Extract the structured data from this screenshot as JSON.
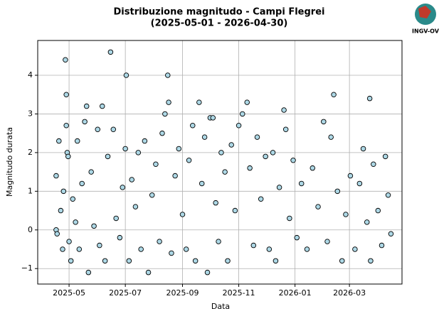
{
  "chart_data": {
    "type": "scatter",
    "title": "Distribuzione magnitudo - Campi Flegrei",
    "subtitle": "(2025-05-01 - 2026-04-30)",
    "x_label": "Data",
    "y_label": "Magnitudo durata",
    "color": "#add8e6",
    "edgecolor": "#000000",
    "grid": true,
    "xlim": [
      "2025-03-28",
      "2026-04-27"
    ],
    "xticks": [
      {
        "value": "2025-05-01",
        "label": "2025-05"
      },
      {
        "value": "2025-07-01",
        "label": "2025-07"
      },
      {
        "value": "2025-09-01",
        "label": "2025-09"
      },
      {
        "value": "2025-11-01",
        "label": "2025-11"
      },
      {
        "value": "2026-01-01",
        "label": "2026-01"
      },
      {
        "value": "2026-03-01",
        "label": "2026-03"
      }
    ],
    "ylim": [
      -1.4,
      4.9
    ],
    "yticks": [
      {
        "value": -1,
        "label": "−1"
      },
      0,
      1,
      2,
      3,
      4
    ],
    "x": [
      "2025-04-17",
      "2025-04-17",
      "2025-04-18",
      "2025-04-20",
      "2025-04-22",
      "2025-04-24",
      "2025-04-25",
      "2025-04-27",
      "2025-04-28",
      "2025-04-28",
      "2025-04-29",
      "2025-04-30",
      "2025-05-01",
      "2025-05-03",
      "2025-05-05",
      "2025-05-08",
      "2025-05-10",
      "2025-05-12",
      "2025-05-15",
      "2025-05-18",
      "2025-05-20",
      "2025-05-22",
      "2025-05-25",
      "2025-05-28",
      "2025-06-01",
      "2025-06-03",
      "2025-06-06",
      "2025-06-09",
      "2025-06-12",
      "2025-06-15",
      "2025-06-18",
      "2025-06-21",
      "2025-06-25",
      "2025-06-28",
      "2025-07-01",
      "2025-07-02",
      "2025-07-05",
      "2025-07-08",
      "2025-07-12",
      "2025-07-15",
      "2025-07-18",
      "2025-07-22",
      "2025-07-26",
      "2025-07-30",
      "2025-08-03",
      "2025-08-07",
      "2025-08-10",
      "2025-08-13",
      "2025-08-16",
      "2025-08-17",
      "2025-08-20",
      "2025-08-24",
      "2025-08-28",
      "2025-09-01",
      "2025-09-05",
      "2025-09-08",
      "2025-09-12",
      "2025-09-15",
      "2025-09-19",
      "2025-09-22",
      "2025-09-25",
      "2025-09-28",
      "2025-10-01",
      "2025-10-04",
      "2025-10-07",
      "2025-10-10",
      "2025-10-13",
      "2025-10-17",
      "2025-10-20",
      "2025-10-24",
      "2025-10-28",
      "2025-11-01",
      "2025-11-05",
      "2025-11-10",
      "2025-11-13",
      "2025-11-17",
      "2025-11-21",
      "2025-11-25",
      "2025-11-30",
      "2025-12-04",
      "2025-12-08",
      "2025-12-11",
      "2025-12-15",
      "2025-12-20",
      "2025-12-22",
      "2025-12-26",
      "2025-12-30",
      "2026-01-03",
      "2026-01-08",
      "2026-01-14",
      "2026-01-20",
      "2026-01-26",
      "2026-02-01",
      "2026-02-05",
      "2026-02-09",
      "2026-02-12",
      "2026-02-16",
      "2026-02-21",
      "2026-02-25",
      "2026-03-02",
      "2026-03-07",
      "2026-03-12",
      "2026-03-16",
      "2026-03-20",
      "2026-03-23",
      "2026-03-24",
      "2026-03-27",
      "2026-04-01",
      "2026-04-05",
      "2026-04-09",
      "2026-04-12",
      "2026-04-15"
    ],
    "values": [
      1.4,
      0.0,
      -0.1,
      2.3,
      0.5,
      -0.5,
      1.0,
      4.4,
      3.5,
      2.7,
      2.0,
      1.9,
      -0.3,
      -0.8,
      0.8,
      0.2,
      2.3,
      -0.5,
      1.2,
      2.8,
      3.2,
      -1.1,
      1.5,
      0.1,
      2.6,
      -0.4,
      3.2,
      -0.8,
      1.9,
      4.6,
      2.6,
      0.3,
      -0.2,
      1.1,
      2.1,
      4.0,
      -0.8,
      1.3,
      0.6,
      2.0,
      -0.5,
      2.3,
      -1.1,
      0.9,
      1.7,
      -0.3,
      2.5,
      3.0,
      4.0,
      3.3,
      -0.6,
      1.4,
      2.1,
      0.4,
      -0.5,
      1.8,
      2.7,
      -0.8,
      3.3,
      1.2,
      2.4,
      -1.1,
      2.9,
      2.9,
      0.7,
      -0.3,
      2.0,
      1.5,
      -0.8,
      2.2,
      0.5,
      2.7,
      3.0,
      3.3,
      1.6,
      -0.4,
      2.4,
      0.8,
      1.9,
      -0.5,
      2.0,
      -0.8,
      1.1,
      3.1,
      2.6,
      0.3,
      1.8,
      -0.2,
      1.2,
      -0.5,
      1.6,
      0.6,
      2.8,
      -0.3,
      2.4,
      3.5,
      1.0,
      -0.8,
      0.4,
      1.4,
      -0.5,
      1.2,
      2.1,
      0.2,
      3.4,
      -0.8,
      1.7,
      0.5,
      -0.4,
      1.9,
      0.9,
      -0.1
    ]
  },
  "logo": {
    "text": "INGV-OV"
  }
}
